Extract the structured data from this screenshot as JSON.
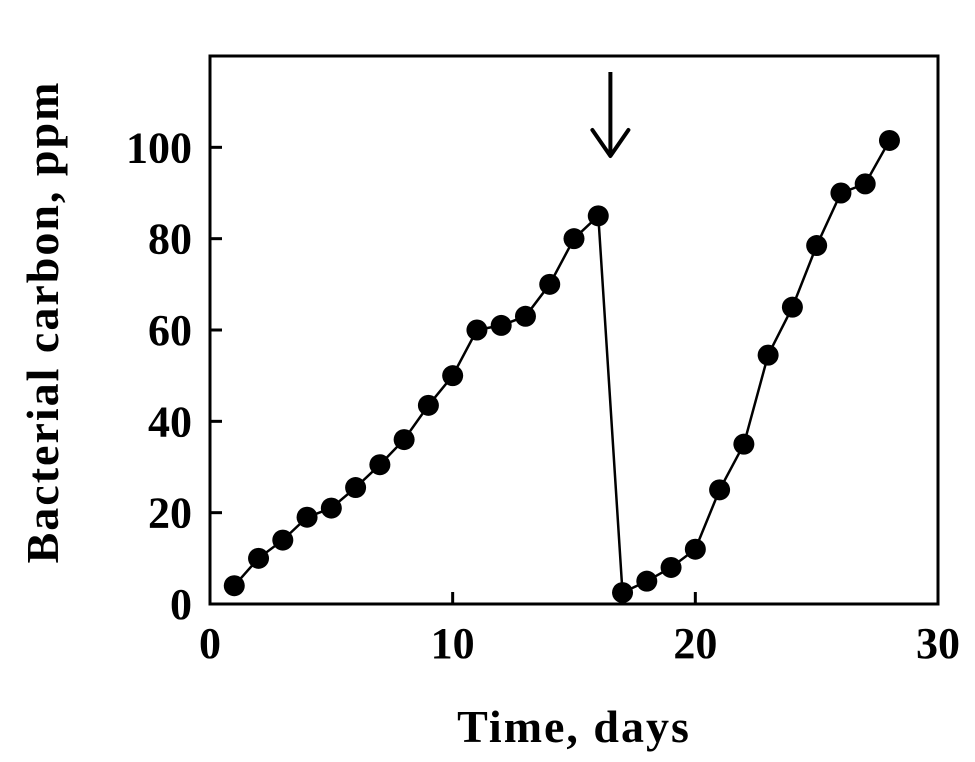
{
  "chart_data": {
    "type": "line",
    "title": "",
    "xlabel": "Time, days",
    "ylabel": "Bacterial carbon, ppm",
    "xlim": [
      0,
      30
    ],
    "ylim": [
      0,
      120
    ],
    "xticks": [
      0,
      10,
      20,
      30
    ],
    "yticks": [
      0,
      20,
      40,
      60,
      80,
      100
    ],
    "grid": false,
    "legend": "none",
    "marker": "filled-circle",
    "colors": {
      "line": "#000000",
      "marker": "#000000"
    },
    "series": [
      {
        "x": [
          1,
          2,
          3,
          4,
          5,
          6,
          7,
          8,
          9,
          10,
          11,
          12,
          13,
          14,
          15,
          16,
          17,
          18,
          19,
          20,
          21,
          22,
          23,
          24,
          25,
          26,
          27,
          28
        ],
        "y": [
          4,
          10,
          14,
          19,
          21,
          25.5,
          30.5,
          36,
          43.5,
          50,
          60,
          61,
          63,
          70,
          80,
          85,
          2.5,
          5,
          8,
          12,
          25,
          35,
          54.5,
          65,
          78.5,
          90,
          92,
          101.5
        ]
      }
    ],
    "annotations": [
      {
        "type": "arrow-down",
        "x": 16.5,
        "icon": "down-arrow-icon"
      }
    ]
  }
}
